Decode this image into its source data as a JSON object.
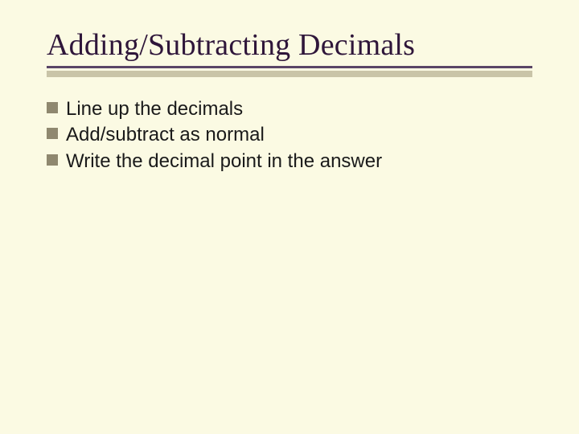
{
  "slide": {
    "background_color": "#fbfae3",
    "title": {
      "text": "Adding/Subtracting Decimals",
      "color": "#2f163a",
      "fontsize": 38
    },
    "underline": {
      "top_color": "#5a4566",
      "shadow_color": "#c9c4a8"
    },
    "bullets": {
      "marker_color": "#8f886f",
      "text_color": "#1a1a1a",
      "fontsize": 24,
      "items": [
        "Line up the decimals",
        "Add/subtract as normal",
        "Write the decimal point in the answer"
      ]
    }
  }
}
